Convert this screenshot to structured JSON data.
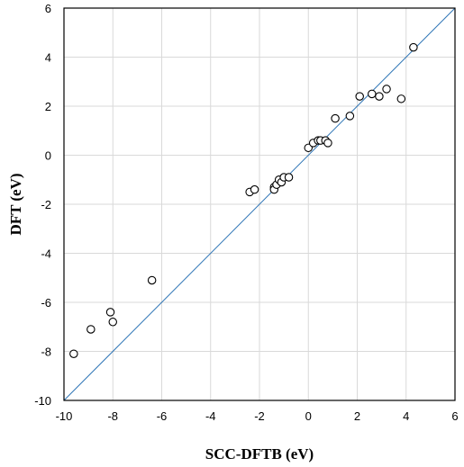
{
  "chart_data": {
    "type": "scatter",
    "xlabel": "SCC-DFTB (eV)",
    "ylabel": "DFT (eV)",
    "xlim": [
      -10,
      6
    ],
    "ylim": [
      -10,
      6
    ],
    "xticks": [
      -10,
      -8,
      -6,
      -4,
      -2,
      0,
      2,
      4,
      6
    ],
    "yticks": [
      -10,
      -8,
      -6,
      -4,
      -2,
      0,
      2,
      4,
      6
    ],
    "grid": true,
    "reference_line": {
      "from": [
        -10,
        -10
      ],
      "to": [
        6,
        6
      ],
      "color": "#2e75b6"
    },
    "marker": "open-circle",
    "points": [
      {
        "x": -9.6,
        "y": -8.1
      },
      {
        "x": -8.9,
        "y": -7.1
      },
      {
        "x": -8.1,
        "y": -6.4
      },
      {
        "x": -8.0,
        "y": -6.8
      },
      {
        "x": -6.4,
        "y": -5.1
      },
      {
        "x": -2.4,
        "y": -1.5
      },
      {
        "x": -2.2,
        "y": -1.4
      },
      {
        "x": -1.4,
        "y": -1.3
      },
      {
        "x": -1.4,
        "y": -1.4
      },
      {
        "x": -1.3,
        "y": -1.2
      },
      {
        "x": -1.2,
        "y": -1.0
      },
      {
        "x": -1.1,
        "y": -1.1
      },
      {
        "x": -1.0,
        "y": -0.9
      },
      {
        "x": -0.8,
        "y": -0.9
      },
      {
        "x": 0.0,
        "y": 0.3
      },
      {
        "x": 0.2,
        "y": 0.5
      },
      {
        "x": 0.4,
        "y": 0.6
      },
      {
        "x": 0.5,
        "y": 0.6
      },
      {
        "x": 0.7,
        "y": 0.6
      },
      {
        "x": 0.8,
        "y": 0.5
      },
      {
        "x": 1.1,
        "y": 1.5
      },
      {
        "x": 1.7,
        "y": 1.6
      },
      {
        "x": 2.1,
        "y": 2.4
      },
      {
        "x": 2.6,
        "y": 2.5
      },
      {
        "x": 2.9,
        "y": 2.4
      },
      {
        "x": 3.2,
        "y": 2.7
      },
      {
        "x": 3.8,
        "y": 2.3
      },
      {
        "x": 4.3,
        "y": 4.4
      }
    ]
  }
}
